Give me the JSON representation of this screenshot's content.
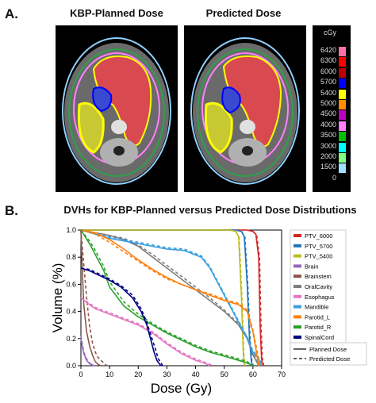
{
  "panel_a": {
    "letter": "A.",
    "left_title": "KBP-Planned Dose",
    "right_title": "Predicted Dose",
    "scale": {
      "unit": "cGy",
      "entries": [
        {
          "label": "6420",
          "color": "#ff6fa8"
        },
        {
          "label": "6300",
          "color": "#ff0000"
        },
        {
          "label": "6000",
          "color": "#c00000"
        },
        {
          "label": "5700",
          "color": "#0000ff"
        },
        {
          "label": "5400",
          "color": "#ffff00"
        },
        {
          "label": "5000",
          "color": "#ff8c00"
        },
        {
          "label": "4500",
          "color": "#c000c0"
        },
        {
          "label": "4000",
          "color": "#ff80ff"
        },
        {
          "label": "3500",
          "color": "#00c000"
        },
        {
          "label": "3000",
          "color": "#00ffff"
        },
        {
          "label": "2000",
          "color": "#80ff80"
        },
        {
          "label": "1500",
          "color": "#a0e0ff"
        },
        {
          "label": "0",
          "color": ""
        }
      ]
    }
  },
  "panel_b": {
    "letter": "B.",
    "title": "DVHs for KBP-Planned versus Predicted Dose Distributions"
  },
  "chart_data": {
    "type": "line",
    "title": "DVHs for KBP-Planned versus Predicted Dose Distributions",
    "xlabel": "Dose (Gy)",
    "ylabel": "Volume (%)",
    "xlim": [
      0,
      70
    ],
    "ylim": [
      0,
      1.0
    ],
    "xticks": [
      "0",
      "10",
      "20",
      "30",
      "40",
      "50",
      "60",
      "70"
    ],
    "yticks": [
      "0.0",
      "0.2",
      "0.4",
      "0.6",
      "0.8",
      "1.0"
    ],
    "grid": false,
    "legend_position": "right",
    "line_style_legend": [
      {
        "label": "Planned Dose",
        "dash": "solid"
      },
      {
        "label": "Predicted Dose",
        "dash": "dashed"
      }
    ],
    "series": [
      {
        "name": "PTV_6000",
        "color": "#d62728",
        "planned": [
          [
            0,
            1
          ],
          [
            58,
            1
          ],
          [
            60,
            0.99
          ],
          [
            61,
            0.97
          ],
          [
            62,
            0.8
          ],
          [
            62.5,
            0.3
          ],
          [
            63,
            0.05
          ],
          [
            63.5,
            0
          ]
        ],
        "predicted": [
          [
            0,
            1
          ],
          [
            58,
            1
          ],
          [
            60,
            0.99
          ],
          [
            61.3,
            0.96
          ],
          [
            62.3,
            0.8
          ],
          [
            62.8,
            0.3
          ],
          [
            63.3,
            0.05
          ],
          [
            63.8,
            0
          ]
        ]
      },
      {
        "name": "PTV_5700",
        "color": "#1f77b4",
        "planned": [
          [
            0,
            1
          ],
          [
            54,
            1
          ],
          [
            56,
            0.99
          ],
          [
            57,
            0.95
          ],
          [
            58,
            0.6
          ],
          [
            58.8,
            0.2
          ],
          [
            59.5,
            0.02
          ],
          [
            60,
            0
          ]
        ],
        "predicted": [
          [
            0,
            1
          ],
          [
            54,
            1
          ],
          [
            56,
            0.99
          ],
          [
            57.2,
            0.95
          ],
          [
            58.2,
            0.6
          ],
          [
            59,
            0.2
          ],
          [
            59.7,
            0.02
          ],
          [
            60.2,
            0
          ]
        ]
      },
      {
        "name": "PTV_5400",
        "color": "#bcbd22",
        "planned": [
          [
            0,
            1
          ],
          [
            52,
            1
          ],
          [
            54,
            0.99
          ],
          [
            55,
            0.95
          ],
          [
            56,
            0.5
          ],
          [
            56.6,
            0.1
          ],
          [
            57,
            0
          ]
        ],
        "predicted": [
          [
            0,
            1
          ],
          [
            52,
            1
          ],
          [
            54,
            0.99
          ],
          [
            55.2,
            0.95
          ],
          [
            56.2,
            0.5
          ],
          [
            56.8,
            0.1
          ],
          [
            57.2,
            0
          ]
        ]
      },
      {
        "name": "Brain",
        "color": "#9467bd",
        "planned": [
          [
            0,
            0.2
          ],
          [
            0.5,
            0.14
          ],
          [
            1,
            0.09
          ],
          [
            2,
            0.04
          ],
          [
            3,
            0.015
          ],
          [
            4,
            0.005
          ],
          [
            5,
            0
          ]
        ],
        "predicted": [
          [
            0,
            0.22
          ],
          [
            0.5,
            0.16
          ],
          [
            1,
            0.1
          ],
          [
            2,
            0.05
          ],
          [
            3,
            0.02
          ],
          [
            4,
            0.007
          ],
          [
            5,
            0
          ]
        ]
      },
      {
        "name": "Brainstem",
        "color": "#8c564b",
        "planned": [
          [
            0,
            1
          ],
          [
            0.5,
            0.7
          ],
          [
            1,
            0.45
          ],
          [
            2,
            0.25
          ],
          [
            3,
            0.15
          ],
          [
            4,
            0.08
          ],
          [
            5,
            0.03
          ],
          [
            6,
            0.01
          ],
          [
            7,
            0
          ]
        ],
        "predicted": [
          [
            0,
            1
          ],
          [
            1,
            0.75
          ],
          [
            2,
            0.5
          ],
          [
            3,
            0.3
          ],
          [
            4,
            0.17
          ],
          [
            5,
            0.1
          ],
          [
            6,
            0.06
          ],
          [
            7,
            0.04
          ],
          [
            8,
            0.02
          ],
          [
            9,
            0
          ]
        ]
      },
      {
        "name": "OralCavity",
        "color": "#7f7f7f",
        "planned": [
          [
            0,
            1
          ],
          [
            5,
            0.98
          ],
          [
            10,
            0.96
          ],
          [
            15,
            0.93
          ],
          [
            20,
            0.88
          ],
          [
            25,
            0.8
          ],
          [
            30,
            0.72
          ],
          [
            35,
            0.64
          ],
          [
            40,
            0.56
          ],
          [
            45,
            0.48
          ],
          [
            50,
            0.4
          ],
          [
            55,
            0.3
          ],
          [
            58,
            0.2
          ],
          [
            60,
            0.08
          ],
          [
            62,
            0
          ]
        ],
        "predicted": [
          [
            0,
            1
          ],
          [
            5,
            0.98
          ],
          [
            10,
            0.96
          ],
          [
            15,
            0.94
          ],
          [
            20,
            0.89
          ],
          [
            25,
            0.82
          ],
          [
            30,
            0.74
          ],
          [
            35,
            0.66
          ],
          [
            40,
            0.58
          ],
          [
            45,
            0.5
          ],
          [
            50,
            0.41
          ],
          [
            55,
            0.31
          ],
          [
            58,
            0.21
          ],
          [
            60,
            0.09
          ],
          [
            62.5,
            0
          ]
        ]
      },
      {
        "name": "Esophagus",
        "color": "#e377c2",
        "planned": [
          [
            0,
            0.5
          ],
          [
            3,
            0.45
          ],
          [
            5,
            0.42
          ],
          [
            10,
            0.38
          ],
          [
            15,
            0.34
          ],
          [
            20,
            0.3
          ],
          [
            25,
            0.24
          ],
          [
            30,
            0.16
          ],
          [
            35,
            0.09
          ],
          [
            40,
            0.04
          ],
          [
            43,
            0.02
          ],
          [
            45,
            0
          ]
        ],
        "predicted": [
          [
            0,
            0.5
          ],
          [
            3,
            0.46
          ],
          [
            5,
            0.43
          ],
          [
            10,
            0.39
          ],
          [
            15,
            0.35
          ],
          [
            20,
            0.31
          ],
          [
            25,
            0.25
          ],
          [
            30,
            0.17
          ],
          [
            35,
            0.1
          ],
          [
            40,
            0.05
          ],
          [
            44,
            0.02
          ],
          [
            46,
            0
          ]
        ]
      },
      {
        "name": "Mandible",
        "color": "#3a9ee0",
        "planned": [
          [
            0,
            1
          ],
          [
            10,
            0.94
          ],
          [
            20,
            0.9
          ],
          [
            30,
            0.86
          ],
          [
            36,
            0.85
          ],
          [
            42,
            0.8
          ],
          [
            45,
            0.72
          ],
          [
            50,
            0.52
          ],
          [
            55,
            0.32
          ],
          [
            58,
            0.2
          ],
          [
            60,
            0.1
          ],
          [
            62,
            0.05
          ],
          [
            63,
            0
          ]
        ],
        "predicted": [
          [
            0,
            1
          ],
          [
            10,
            0.95
          ],
          [
            20,
            0.91
          ],
          [
            30,
            0.87
          ],
          [
            36,
            0.86
          ],
          [
            42,
            0.81
          ],
          [
            45,
            0.73
          ],
          [
            50,
            0.53
          ],
          [
            55,
            0.33
          ],
          [
            58,
            0.21
          ],
          [
            60,
            0.11
          ],
          [
            62,
            0.06
          ],
          [
            63.5,
            0
          ]
        ]
      },
      {
        "name": "Parotid_L",
        "color": "#ff7f0e",
        "planned": [
          [
            0,
            1
          ],
          [
            5,
            0.98
          ],
          [
            10,
            0.93
          ],
          [
            15,
            0.86
          ],
          [
            20,
            0.78
          ],
          [
            25,
            0.71
          ],
          [
            30,
            0.65
          ],
          [
            35,
            0.6
          ],
          [
            40,
            0.56
          ],
          [
            45,
            0.52
          ],
          [
            50,
            0.48
          ],
          [
            55,
            0.45
          ],
          [
            58,
            0.4
          ],
          [
            60,
            0.25
          ],
          [
            62,
            0
          ]
        ],
        "predicted": [
          [
            0,
            1
          ],
          [
            5,
            0.97
          ],
          [
            10,
            0.91
          ],
          [
            15,
            0.84
          ],
          [
            20,
            0.77
          ],
          [
            25,
            0.7
          ],
          [
            30,
            0.64
          ],
          [
            35,
            0.6
          ],
          [
            40,
            0.56
          ],
          [
            45,
            0.53
          ],
          [
            50,
            0.49
          ],
          [
            55,
            0.46
          ],
          [
            58,
            0.41
          ],
          [
            60,
            0.26
          ],
          [
            62.5,
            0
          ]
        ]
      },
      {
        "name": "Parotid_R",
        "color": "#2ca02c",
        "planned": [
          [
            0,
            1
          ],
          [
            3,
            0.9
          ],
          [
            5,
            0.82
          ],
          [
            8,
            0.7
          ],
          [
            10,
            0.58
          ],
          [
            15,
            0.44
          ],
          [
            20,
            0.36
          ],
          [
            25,
            0.3
          ],
          [
            30,
            0.24
          ],
          [
            35,
            0.19
          ],
          [
            40,
            0.14
          ],
          [
            45,
            0.1
          ],
          [
            50,
            0.07
          ],
          [
            55,
            0.04
          ],
          [
            58,
            0.02
          ],
          [
            60,
            0
          ]
        ],
        "predicted": [
          [
            0,
            1
          ],
          [
            3,
            0.92
          ],
          [
            5,
            0.85
          ],
          [
            8,
            0.73
          ],
          [
            10,
            0.62
          ],
          [
            15,
            0.47
          ],
          [
            20,
            0.38
          ],
          [
            25,
            0.31
          ],
          [
            30,
            0.25
          ],
          [
            35,
            0.2
          ],
          [
            40,
            0.15
          ],
          [
            45,
            0.11
          ],
          [
            50,
            0.08
          ],
          [
            55,
            0.05
          ],
          [
            58,
            0.03
          ],
          [
            60,
            0
          ]
        ]
      },
      {
        "name": "SpinalCord",
        "color": "#000080",
        "planned": [
          [
            0,
            0.72
          ],
          [
            3,
            0.7
          ],
          [
            6,
            0.67
          ],
          [
            10,
            0.63
          ],
          [
            14,
            0.58
          ],
          [
            18,
            0.5
          ],
          [
            21,
            0.4
          ],
          [
            23,
            0.3
          ],
          [
            24.5,
            0.18
          ],
          [
            25.5,
            0.1
          ],
          [
            26.5,
            0.04
          ],
          [
            27.5,
            0.01
          ],
          [
            28,
            0
          ]
        ],
        "predicted": [
          [
            0,
            0.72
          ],
          [
            3,
            0.71
          ],
          [
            6,
            0.68
          ],
          [
            10,
            0.64
          ],
          [
            14,
            0.59
          ],
          [
            18,
            0.52
          ],
          [
            21,
            0.42
          ],
          [
            23,
            0.32
          ],
          [
            24.8,
            0.2
          ],
          [
            26,
            0.12
          ],
          [
            27,
            0.05
          ],
          [
            28,
            0.02
          ],
          [
            28.5,
            0
          ]
        ]
      }
    ]
  }
}
